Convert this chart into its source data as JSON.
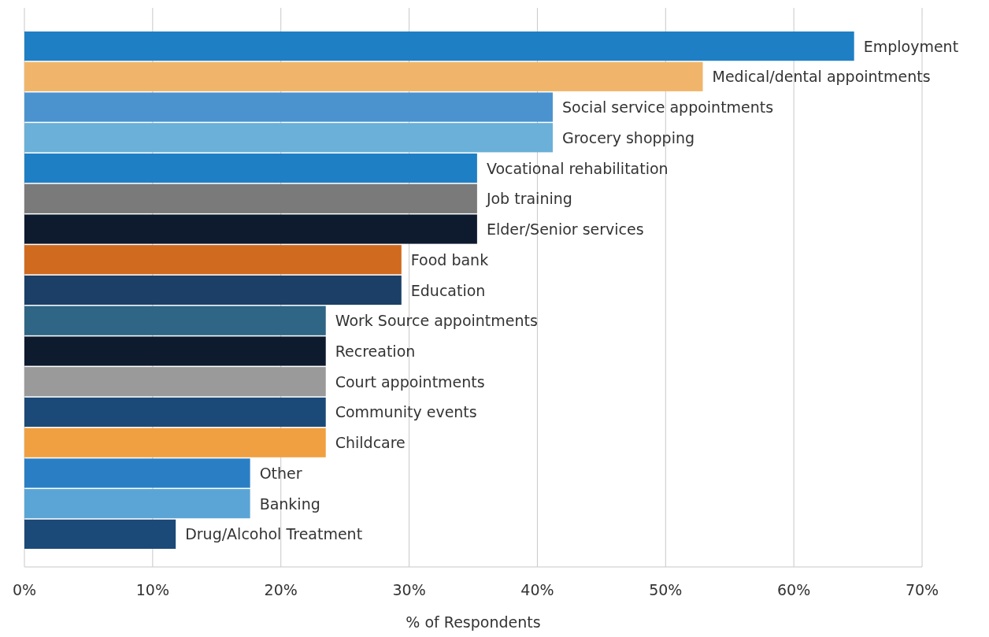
{
  "chart_data": {
    "type": "bar",
    "orientation": "horizontal",
    "xlabel": "% of Respondents",
    "categories": [
      "Employment",
      "Medical/dental appointments",
      "Social service appointments",
      "Grocery shopping",
      "Vocational rehabilitation",
      "Job training",
      "Elder/Senior services",
      "Food bank",
      "Education",
      "Work Source appointments",
      "Recreation",
      "Court appointments",
      "Community events",
      "Childcare",
      "Other",
      "Banking",
      "Drug/Alcohol Treatment"
    ],
    "values": [
      64.7,
      52.9,
      41.2,
      41.2,
      35.3,
      35.3,
      35.3,
      29.4,
      29.4,
      23.5,
      23.5,
      23.5,
      23.5,
      23.5,
      17.6,
      17.6,
      11.8
    ],
    "colors": [
      "#1f7fc4",
      "#f0b56a",
      "#4b93cf",
      "#6ab0d8",
      "#1f7fc4",
      "#7a7a7a",
      "#0e1a2e",
      "#d06a1f",
      "#1b3f66",
      "#2f6585",
      "#0e1a2e",
      "#9a9a9a",
      "#1b4a78",
      "#f0a040",
      "#2a7fc4",
      "#5aa5d5",
      "#1b4a78"
    ],
    "xlim": [
      0,
      70
    ],
    "xticks": [
      {
        "value": 0,
        "label": "0%"
      },
      {
        "value": 10,
        "label": "10%"
      },
      {
        "value": 20,
        "label": "20%"
      },
      {
        "value": 30,
        "label": "30%"
      },
      {
        "value": 40,
        "label": "40%"
      },
      {
        "value": 50,
        "label": "50%"
      },
      {
        "value": 60,
        "label": "60%"
      },
      {
        "value": 70,
        "label": "70%"
      }
    ],
    "grid": "x"
  }
}
